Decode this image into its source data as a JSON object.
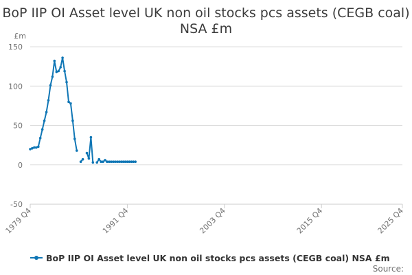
{
  "title": "BoP IIP OI Asset level UK non oil stocks pcs assets (CEGB coal) NSA £m",
  "unit_label": "£m",
  "source_label": "Source:",
  "colors": {
    "series": "#0f76b5",
    "grid": "#dddddd",
    "axis": "#cccccc",
    "text": "#707070"
  },
  "chart_data": {
    "type": "line",
    "title": "BoP IIP OI Asset level UK non oil stocks pcs assets (CEGB coal) NSA £m",
    "ylabel": "£m",
    "ylim": [
      -50,
      150
    ],
    "yticks": [
      150,
      100,
      50,
      0,
      -50
    ],
    "xlim": [
      "1979 Q4",
      "2025 Q4"
    ],
    "xticks": [
      "1979 Q4",
      "1991 Q4",
      "2003 Q4",
      "2015 Q4",
      "2025 Q4"
    ],
    "grid": true,
    "legend_position": "bottom",
    "series": [
      {
        "name": "BoP IIP OI Asset level UK non oil stocks pcs assets (CEGB coal) NSA £m",
        "points": [
          [
            "1979 Q4",
            20
          ],
          [
            "1980 Q1",
            21
          ],
          [
            "1980 Q2",
            22
          ],
          [
            "1980 Q3",
            22
          ],
          [
            "1980 Q4",
            23
          ],
          [
            "1981 Q1",
            34
          ],
          [
            "1981 Q2",
            45
          ],
          [
            "1981 Q3",
            56
          ],
          [
            "1981 Q4",
            67
          ],
          [
            "1982 Q1",
            82
          ],
          [
            "1982 Q2",
            101
          ],
          [
            "1982 Q3",
            112
          ],
          [
            "1982 Q4",
            132
          ],
          [
            "1983 Q1",
            118
          ],
          [
            "1983 Q2",
            119
          ],
          [
            "1983 Q3",
            124
          ],
          [
            "1983 Q4",
            136
          ],
          [
            "1984 Q1",
            119
          ],
          [
            "1984 Q2",
            105
          ],
          [
            "1984 Q3",
            80
          ],
          [
            "1984 Q4",
            78
          ],
          [
            "1985 Q1",
            56
          ],
          [
            "1985 Q2",
            33
          ],
          [
            "1985 Q3",
            18
          ],
          [
            "1985 Q4",
            null
          ],
          [
            "1986 Q1",
            4
          ],
          [
            "1986 Q2",
            7
          ],
          [
            "1986 Q3",
            null
          ],
          [
            "1986 Q4",
            15
          ],
          [
            "1987 Q1",
            8
          ],
          [
            "1987 Q2",
            35
          ],
          [
            "1987 Q3",
            3
          ],
          [
            "1987 Q4",
            null
          ],
          [
            "1988 Q1",
            3
          ],
          [
            "1988 Q2",
            7
          ],
          [
            "1988 Q3",
            4
          ],
          [
            "1988 Q4",
            4
          ],
          [
            "1989 Q1",
            6
          ],
          [
            "1989 Q2",
            4
          ],
          [
            "1989 Q3",
            4
          ],
          [
            "1989 Q4",
            4
          ],
          [
            "1990 Q1",
            4
          ],
          [
            "1990 Q2",
            4
          ],
          [
            "1990 Q3",
            4
          ],
          [
            "1990 Q4",
            4
          ],
          [
            "1991 Q1",
            4
          ],
          [
            "1991 Q2",
            4
          ],
          [
            "1991 Q3",
            4
          ],
          [
            "1991 Q4",
            4
          ],
          [
            "1992 Q1",
            4
          ],
          [
            "1992 Q2",
            4
          ],
          [
            "1992 Q3",
            4
          ],
          [
            "1992 Q4",
            4
          ]
        ]
      }
    ]
  }
}
